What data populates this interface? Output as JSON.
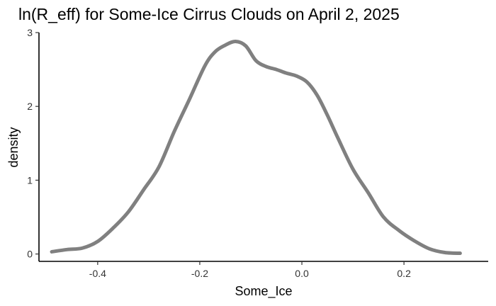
{
  "chart_data": {
    "type": "line",
    "title": "ln(R_eff) for Some-Ice Cirrus Clouds on April 2, 2025",
    "xlabel": "Some_Ice",
    "ylabel": "density",
    "xlim": [
      -0.515,
      0.365
    ],
    "ylim": [
      -0.1,
      3.0
    ],
    "x_ticks": [
      -0.4,
      -0.2,
      0.0,
      0.2
    ],
    "x_tick_labels": [
      "-0.4",
      "-0.2",
      "0.0",
      "0.2"
    ],
    "y_ticks": [
      0,
      1,
      2,
      3
    ],
    "y_tick_labels": [
      "0",
      "1",
      "2",
      "3"
    ],
    "grid": false,
    "series": [
      {
        "color": "#808080",
        "x": [
          -0.49,
          -0.46,
          -0.43,
          -0.4,
          -0.37,
          -0.34,
          -0.31,
          -0.28,
          -0.25,
          -0.22,
          -0.19,
          -0.17,
          -0.15,
          -0.13,
          -0.11,
          -0.09,
          -0.07,
          -0.05,
          -0.03,
          -0.01,
          0.01,
          0.03,
          0.05,
          0.07,
          0.1,
          0.13,
          0.16,
          0.19,
          0.22,
          0.25,
          0.28,
          0.31
        ],
        "y": [
          0.03,
          0.06,
          0.08,
          0.17,
          0.35,
          0.57,
          0.87,
          1.18,
          1.66,
          2.1,
          2.55,
          2.74,
          2.83,
          2.88,
          2.82,
          2.62,
          2.54,
          2.5,
          2.45,
          2.41,
          2.33,
          2.15,
          1.88,
          1.58,
          1.15,
          0.83,
          0.5,
          0.32,
          0.18,
          0.07,
          0.02,
          0.01
        ]
      }
    ]
  }
}
